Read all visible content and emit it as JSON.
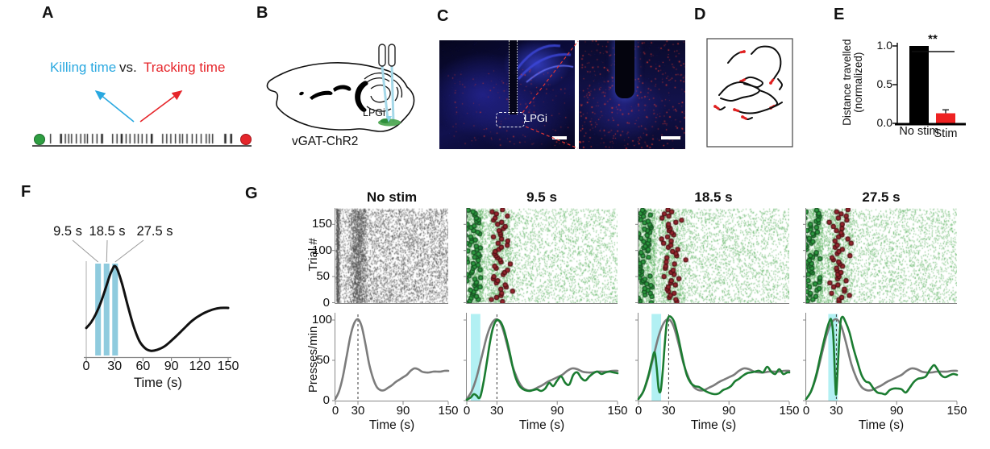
{
  "panelA": {
    "label": "A",
    "killing_label": "Killing time",
    "vs_label": "vs.",
    "tracking_label": "Tracking time",
    "killing_color": "#29A8E0",
    "tracking_color": "#E6252A",
    "start_dot_color": "#2E9E41",
    "end_dot_color": "#E5262B",
    "tick_color": "#1b1b1b"
  },
  "panelB": {
    "label": "B",
    "caption": "vGAT-ChR2",
    "region_label": "LPGi",
    "fiber_color": "#A5D8E8",
    "injection_color": "#47A34B"
  },
  "panelC": {
    "label": "C",
    "region_label": "LPGi",
    "stain_blue": "#1a1a8c",
    "signal_red": "#E63C30",
    "zoom_line_color": "#E03434"
  },
  "panelD": {
    "label": "D",
    "track_color": "#0d0d0d",
    "tip_color": "#E02020",
    "tracks": [
      {
        "points": [
          [
            26,
            30
          ],
          [
            33,
            22
          ],
          [
            41,
            17
          ],
          [
            46,
            16
          ]
        ],
        "red": "end"
      },
      {
        "points": [
          [
            55,
            19
          ],
          [
            64,
            11
          ],
          [
            77,
            10
          ],
          [
            86,
            15
          ],
          [
            91,
            25
          ],
          [
            90,
            38
          ],
          [
            84,
            48
          ],
          [
            79,
            55
          ]
        ],
        "red": "end"
      },
      {
        "points": [
          [
            42,
            53
          ],
          [
            52,
            48
          ],
          [
            62,
            50
          ],
          [
            69,
            55
          ],
          [
            63,
            60
          ],
          [
            54,
            58
          ],
          [
            46,
            56
          ]
        ],
        "red": "start"
      },
      {
        "points": [
          [
            15,
            70
          ],
          [
            26,
            59
          ],
          [
            41,
            54
          ],
          [
            55,
            58
          ],
          [
            65,
            64
          ],
          [
            57,
            70
          ],
          [
            44,
            73
          ],
          [
            30,
            77
          ],
          [
            17,
            74
          ]
        ],
        "red": "none"
      },
      {
        "points": [
          [
            65,
            64
          ],
          [
            75,
            68
          ],
          [
            83,
            74
          ],
          [
            87,
            81
          ],
          [
            79,
            86
          ]
        ],
        "red": "end"
      },
      {
        "points": [
          [
            34,
            88
          ],
          [
            46,
            92
          ],
          [
            60,
            92
          ],
          [
            74,
            88
          ],
          [
            86,
            83
          ],
          [
            93,
            79
          ]
        ],
        "red": "start"
      },
      {
        "points": [
          [
            10,
            84
          ],
          [
            16,
            88
          ],
          [
            22,
            85
          ]
        ],
        "red": "start"
      },
      {
        "points": [
          [
            44,
            97
          ],
          [
            50,
            100
          ],
          [
            56,
            98
          ]
        ],
        "red": "start"
      },
      {
        "points": [
          [
            88,
            50
          ],
          [
            93,
            57
          ],
          [
            90,
            63
          ]
        ],
        "red": "none"
      }
    ]
  },
  "panelE": {
    "label": "E",
    "chart_data": {
      "type": "bar",
      "categories": [
        "No stim",
        "Stim"
      ],
      "values": [
        1.0,
        0.13
      ],
      "errors": [
        0,
        0.045
      ],
      "bar_colors": [
        "#000000",
        "#EE2222"
      ],
      "ylabel_line1": "Distance travelled",
      "ylabel_line2": "(normalized)",
      "yticks": [
        0.0,
        0.5,
        1.0
      ],
      "ylim": [
        0,
        1.0
      ],
      "significance": "**"
    }
  },
  "panelF": {
    "label": "F",
    "chart_data": {
      "type": "line",
      "xlabel": "Time (s)",
      "xticks": [
        0,
        30,
        60,
        90,
        120,
        150
      ],
      "xlim": [
        0,
        150
      ],
      "stim_times": [
        9.5,
        18.5,
        27.5
      ],
      "stim_labels": [
        "9.5 s",
        "18.5 s",
        "27.5 s"
      ],
      "stim_duration": 6,
      "stim_color": "#8FCBDE",
      "curve_color": "#111111",
      "curve": [
        [
          0,
          0.32
        ],
        [
          5,
          0.38
        ],
        [
          10,
          0.47
        ],
        [
          15,
          0.59
        ],
        [
          20,
          0.74
        ],
        [
          25,
          0.9
        ],
        [
          28,
          0.97
        ],
        [
          30,
          1.0
        ],
        [
          33,
          0.96
        ],
        [
          38,
          0.8
        ],
        [
          44,
          0.56
        ],
        [
          50,
          0.34
        ],
        [
          56,
          0.18
        ],
        [
          62,
          0.1
        ],
        [
          68,
          0.07
        ],
        [
          75,
          0.08
        ],
        [
          83,
          0.12
        ],
        [
          92,
          0.2
        ],
        [
          102,
          0.3
        ],
        [
          112,
          0.4
        ],
        [
          122,
          0.47
        ],
        [
          133,
          0.52
        ],
        [
          142,
          0.54
        ],
        [
          150,
          0.54
        ]
      ]
    }
  },
  "panelG": {
    "label": "G",
    "raster_ylabel": "Trial #",
    "rate_ylabel": "Presses/min",
    "xlabel": "Time (s)",
    "raster_yticks": [
      0,
      50,
      100,
      150
    ],
    "rate_yticks": [
      0,
      50,
      100
    ],
    "xticks": [
      0,
      30,
      90,
      150
    ],
    "xlim": [
      0,
      150
    ],
    "n_trials": 180,
    "dashed_time": 30,
    "colors": {
      "nostim_tick": "#565656",
      "stim_tick": "#5FB464",
      "start_marker": "#2E9E41",
      "start_marker_edge": "#145020",
      "kill_marker": "#98262F",
      "kill_marker_edge": "#4F0F12",
      "gray_curve": "#7C7C7C",
      "green_curve": "#1B7C31",
      "stim_band": "#B2F0F3",
      "dashed": "#3A3A3A"
    },
    "gray_curve": [
      [
        0,
        2
      ],
      [
        5,
        12
      ],
      [
        10,
        30
      ],
      [
        15,
        55
      ],
      [
        20,
        80
      ],
      [
        25,
        96
      ],
      [
        30,
        101
      ],
      [
        35,
        92
      ],
      [
        40,
        70
      ],
      [
        45,
        45
      ],
      [
        50,
        28
      ],
      [
        55,
        17
      ],
      [
        60,
        13
      ],
      [
        65,
        13
      ],
      [
        70,
        16
      ],
      [
        75,
        19
      ],
      [
        80,
        23
      ],
      [
        85,
        26
      ],
      [
        90,
        29
      ],
      [
        95,
        32
      ],
      [
        100,
        37
      ],
      [
        105,
        40
      ],
      [
        110,
        39
      ],
      [
        115,
        36
      ],
      [
        120,
        35
      ],
      [
        125,
        35
      ],
      [
        130,
        36
      ],
      [
        135,
        36
      ],
      [
        140,
        36
      ],
      [
        145,
        37
      ],
      [
        150,
        37
      ]
    ],
    "columns": [
      {
        "title": "No stim",
        "stim": false
      },
      {
        "title": "9.5 s",
        "stim": true,
        "band": [
          4,
          13.5
        ],
        "green_curve": [
          [
            0,
            1
          ],
          [
            4,
            4
          ],
          [
            7,
            8
          ],
          [
            10,
            6
          ],
          [
            12,
            3
          ],
          [
            14,
            7
          ],
          [
            17,
            25
          ],
          [
            20,
            48
          ],
          [
            23,
            72
          ],
          [
            26,
            90
          ],
          [
            29,
            99
          ],
          [
            31,
            100
          ],
          [
            34,
            97
          ],
          [
            37,
            88
          ],
          [
            40,
            74
          ],
          [
            43,
            58
          ],
          [
            46,
            40
          ],
          [
            49,
            27
          ],
          [
            52,
            19
          ],
          [
            55,
            15
          ],
          [
            58,
            13
          ],
          [
            62,
            12
          ],
          [
            66,
            13
          ],
          [
            70,
            14
          ],
          [
            74,
            12
          ],
          [
            78,
            15
          ],
          [
            82,
            22
          ],
          [
            86,
            18
          ],
          [
            90,
            25
          ],
          [
            94,
            30
          ],
          [
            98,
            22
          ],
          [
            102,
            20
          ],
          [
            106,
            32
          ],
          [
            110,
            35
          ],
          [
            114,
            28
          ],
          [
            118,
            25
          ],
          [
            122,
            30
          ],
          [
            126,
            34
          ],
          [
            130,
            36
          ],
          [
            134,
            33
          ],
          [
            138,
            35
          ],
          [
            142,
            36
          ],
          [
            146,
            35
          ],
          [
            150,
            34
          ]
        ]
      },
      {
        "title": "18.5 s",
        "stim": true,
        "band": [
          13,
          22.5
        ],
        "green_curve": [
          [
            0,
            2
          ],
          [
            5,
            12
          ],
          [
            10,
            32
          ],
          [
            13,
            48
          ],
          [
            16,
            60
          ],
          [
            18,
            42
          ],
          [
            20,
            15
          ],
          [
            22,
            12
          ],
          [
            24,
            35
          ],
          [
            26,
            68
          ],
          [
            28,
            95
          ],
          [
            30,
            104
          ],
          [
            33,
            103
          ],
          [
            36,
            96
          ],
          [
            40,
            76
          ],
          [
            44,
            52
          ],
          [
            48,
            32
          ],
          [
            52,
            22
          ],
          [
            56,
            18
          ],
          [
            60,
            17
          ],
          [
            64,
            14
          ],
          [
            68,
            11
          ],
          [
            72,
            9
          ],
          [
            76,
            8
          ],
          [
            80,
            9
          ],
          [
            84,
            13
          ],
          [
            88,
            15
          ],
          [
            92,
            18
          ],
          [
            96,
            24
          ],
          [
            100,
            27
          ],
          [
            104,
            31
          ],
          [
            108,
            34
          ],
          [
            112,
            35
          ],
          [
            116,
            36
          ],
          [
            120,
            37
          ],
          [
            124,
            35
          ],
          [
            128,
            42
          ],
          [
            132,
            36
          ],
          [
            136,
            33
          ],
          [
            140,
            39
          ],
          [
            144,
            33
          ],
          [
            148,
            35
          ],
          [
            150,
            35
          ]
        ]
      },
      {
        "title": "27.5 s",
        "stim": true,
        "band": [
          22,
          31.5
        ],
        "green_curve": [
          [
            0,
            2
          ],
          [
            5,
            12
          ],
          [
            10,
            32
          ],
          [
            15,
            60
          ],
          [
            20,
            86
          ],
          [
            23,
            98
          ],
          [
            25,
            100
          ],
          [
            27,
            80
          ],
          [
            29,
            20
          ],
          [
            30,
            10
          ],
          [
            32,
            55
          ],
          [
            34,
            95
          ],
          [
            36,
            104
          ],
          [
            39,
            98
          ],
          [
            43,
            85
          ],
          [
            47,
            65
          ],
          [
            51,
            48
          ],
          [
            55,
            32
          ],
          [
            59,
            24
          ],
          [
            63,
            22
          ],
          [
            67,
            15
          ],
          [
            71,
            10
          ],
          [
            75,
            9
          ],
          [
            79,
            8
          ],
          [
            83,
            13
          ],
          [
            87,
            15
          ],
          [
            91,
            15
          ],
          [
            95,
            14
          ],
          [
            99,
            10
          ],
          [
            103,
            16
          ],
          [
            107,
            23
          ],
          [
            111,
            27
          ],
          [
            115,
            28
          ],
          [
            119,
            30
          ],
          [
            123,
            38
          ],
          [
            127,
            44
          ],
          [
            130,
            40
          ],
          [
            134,
            32
          ],
          [
            138,
            29
          ],
          [
            142,
            31
          ],
          [
            146,
            33
          ],
          [
            150,
            32
          ]
        ]
      }
    ]
  }
}
